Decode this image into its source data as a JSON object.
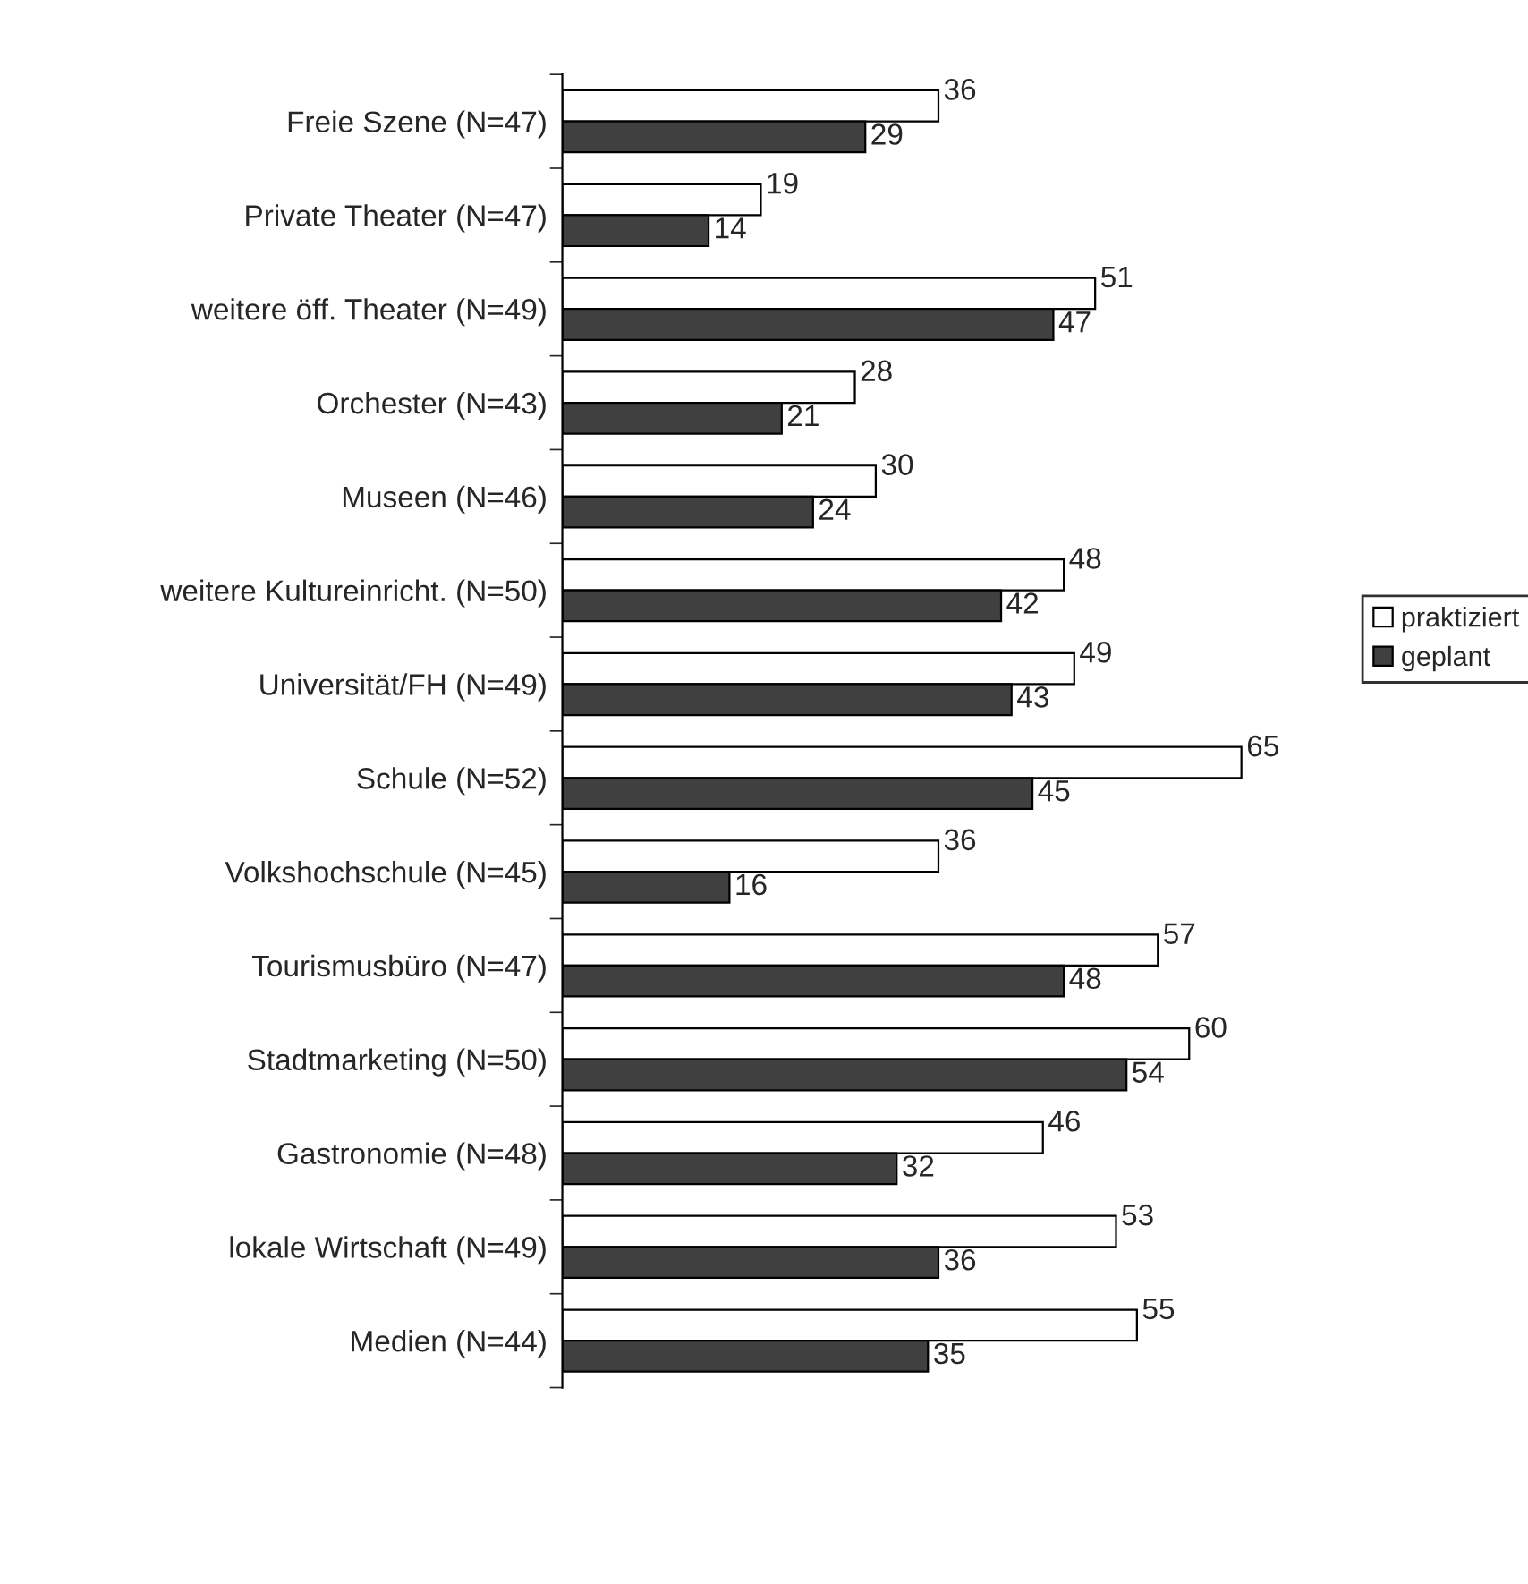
{
  "chart_data": {
    "type": "bar",
    "orientation": "horizontal",
    "categories": [
      "Freie Szene (N=47)",
      "Private Theater (N=47)",
      "weitere öff. Theater (N=49)",
      "Orchester (N=43)",
      "Museen (N=46)",
      "weitere Kultureinricht. (N=50)",
      "Universität/FH (N=49)",
      "Schule (N=52)",
      "Volkshochschule (N=45)",
      "Tourismusbüro (N=47)",
      "Stadtmarketing (N=50)",
      "Gastronomie (N=48)",
      "lokale Wirtschaft (N=49)",
      "Medien (N=44)"
    ],
    "series": [
      {
        "name": "praktiziert",
        "color": "#ffffff",
        "values": [
          36,
          19,
          51,
          28,
          30,
          48,
          49,
          65,
          36,
          57,
          60,
          46,
          53,
          55
        ]
      },
      {
        "name": "geplant",
        "color": "#404040",
        "values": [
          29,
          14,
          47,
          21,
          24,
          42,
          43,
          45,
          16,
          48,
          54,
          32,
          36,
          35
        ]
      }
    ],
    "data_labels": true,
    "legend": "right",
    "grid": false,
    "tick_labels": "y"
  }
}
